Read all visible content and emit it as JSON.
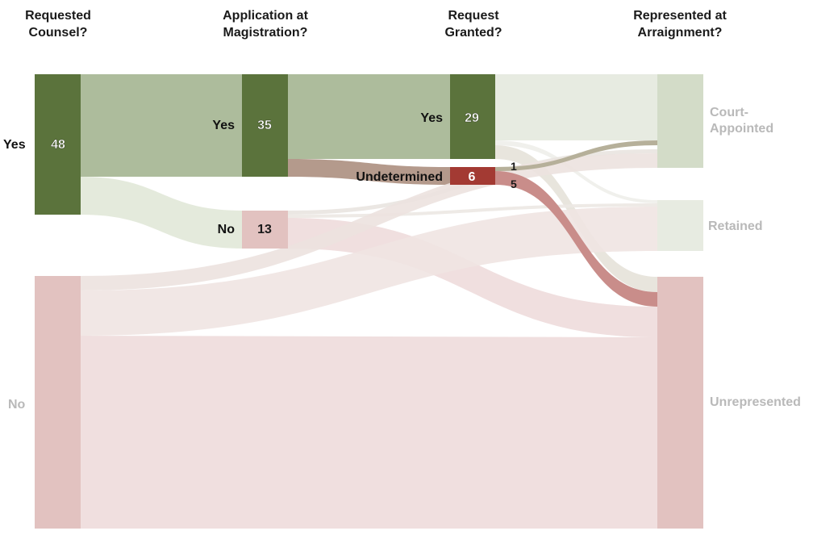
{
  "headers": {
    "col1": [
      "Requested",
      "Counsel?"
    ],
    "col2": [
      "Application at",
      "Magistration?"
    ],
    "col3": [
      "Request",
      "Granted?"
    ],
    "col4": [
      "Represented at",
      "Arraignment?"
    ]
  },
  "nodes": {
    "rc_yes": {
      "label": "Yes",
      "value": "48"
    },
    "rc_no": {
      "label": "No",
      "value": ""
    },
    "app_yes": {
      "label": "Yes",
      "value": "35"
    },
    "app_no": {
      "label": "No",
      "value": "13"
    },
    "gr_yes": {
      "label": "Yes",
      "value": "29"
    },
    "gr_und": {
      "label": "Undetermined",
      "value": "6"
    },
    "rep_court": {
      "label": [
        "Court-",
        "Appointed"
      ]
    },
    "rep_retained": {
      "label": "Retained"
    },
    "rep_unrep": {
      "label": "Unrepresented"
    }
  },
  "flow_labels": {
    "und_to_court": "1",
    "und_to_unrep": "5"
  },
  "colors": {
    "green_dark": "#5b733c",
    "green_flow": "#adbc9c",
    "green_light_node": "#d3dcc8",
    "green_pale_flow": "#e7ebe1",
    "red_dark": "#a33a33",
    "red_flow": "#c98d8a",
    "pink_node": "#e2c2c0",
    "pink_flow": "#f0dfdf",
    "grey_text": "#b9b9b9"
  }
}
